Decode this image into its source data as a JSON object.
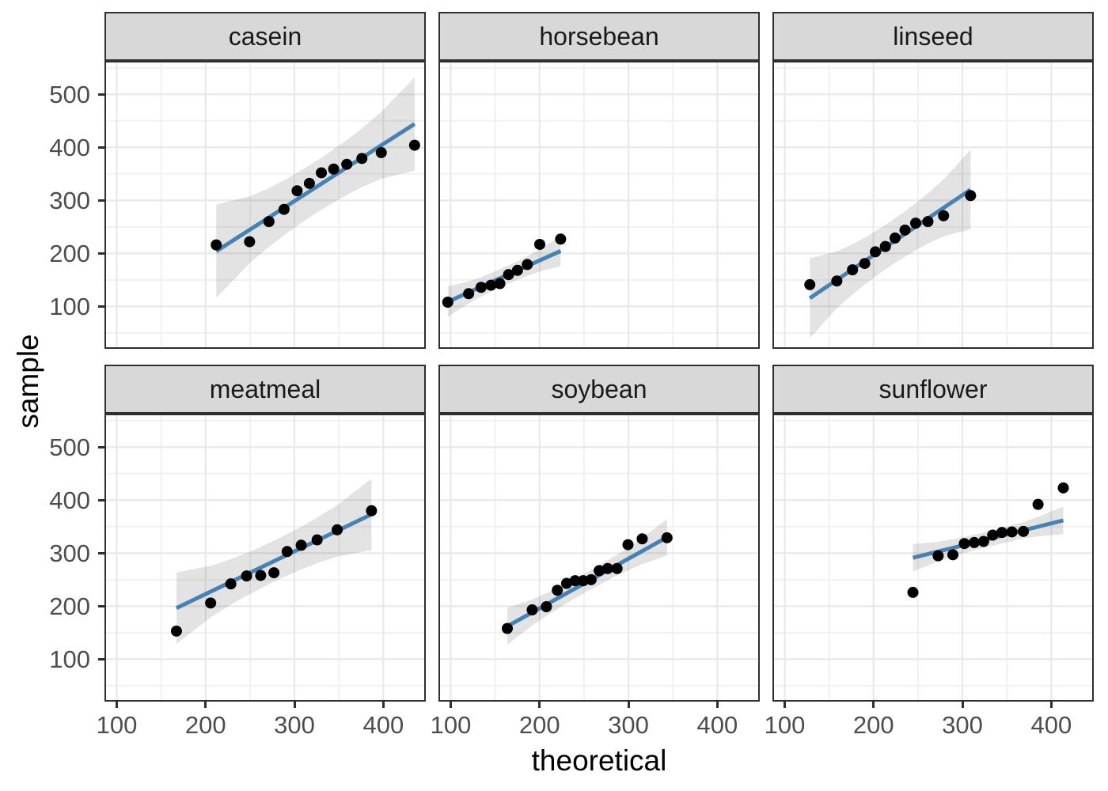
{
  "figure": {
    "kind": "faceted-qq-plot",
    "facet_titles": [
      "casein",
      "horsebean",
      "linseed",
      "meatmeal",
      "soybean",
      "sunflower"
    ]
  },
  "axes": {
    "x_title": "theoretical",
    "y_title": "sample",
    "x_ticks": [
      100,
      200,
      300,
      400
    ],
    "y_ticks": [
      100,
      200,
      300,
      400,
      500
    ],
    "x_minor": [
      150,
      250,
      350
    ],
    "y_minor": [
      50,
      150,
      250,
      350,
      450,
      550
    ],
    "x_domain": [
      88,
      446
    ],
    "y_domain": [
      23,
      560
    ]
  },
  "colors": {
    "qq_line": "#4682B4",
    "band_fill": "rgba(60,60,60,0.14)",
    "point": "#000000",
    "strip_bg": "#D8D8D8",
    "panel_border": "#2F2F2F",
    "grid_major": "#E9E9E9",
    "grid_minor": "#F1F1F1",
    "axis_text": "#4D4D4D",
    "title_text": "#000000"
  },
  "chart_data": [
    {
      "type": "scatter",
      "name": "casein",
      "x": [
        212.0,
        249.5,
        271.3,
        288.3,
        303.0,
        316.8,
        330.3,
        344.1,
        358.9,
        375.9,
        397.7,
        435.2
      ],
      "y": [
        216,
        222,
        260,
        283,
        318,
        332,
        352,
        359,
        368,
        379,
        390,
        404
      ],
      "line": {
        "x1": 212.0,
        "y1": 204.0,
        "x2": 435.2,
        "y2": 444.1
      },
      "band_lo": [
        115.9,
        181.3,
        212.2,
        234.1,
        251.8,
        267.6,
        282.1,
        296.0,
        310.1,
        324.8,
        340.7,
        356.0
      ],
      "band_hi": [
        292.1,
        307.3,
        323.2,
        337.9,
        352.0,
        366.0,
        380.5,
        396.2,
        413.9,
        435.8,
        466.7,
        532.2
      ]
    },
    {
      "type": "scatter",
      "name": "horsebean",
      "x": [
        96.7,
        120.2,
        134.2,
        145.3,
        155.3,
        165.1,
        175.1,
        186.2,
        200.2,
        223.7
      ],
      "y": [
        108,
        124,
        136,
        140,
        143,
        160,
        168,
        179,
        217,
        227
      ],
      "line": {
        "x1": 96.7,
        "y1": 108.8,
        "x2": 223.7,
        "y2": 204.5
      },
      "band_lo": [
        80.2,
        105.8,
        118.5,
        128.0,
        136.0,
        143.3,
        150.4,
        157.7,
        166.1,
        175.9
      ],
      "band_hi": [
        137.4,
        147.2,
        155.5,
        162.8,
        170.0,
        177.3,
        185.2,
        194.7,
        207.5,
        233.1
      ]
    },
    {
      "type": "scatter",
      "name": "linseed",
      "x": [
        128.3,
        158.7,
        176.3,
        190.1,
        202.1,
        213.3,
        224.2,
        235.4,
        247.4,
        261.2,
        278.8,
        309.2
      ],
      "y": [
        141,
        148,
        169,
        181,
        203,
        213,
        229,
        244,
        257,
        260,
        271,
        309
      ],
      "line": {
        "x1": 128.3,
        "y1": 115.5,
        "x2": 309.2,
        "y2": 320.3
      },
      "band_lo": [
        40.4,
        96.2,
        122.5,
        141.2,
        156.3,
        169.7,
        182.1,
        194.0,
        206.0,
        218.5,
        232.2,
        245.2
      ],
      "band_hi": [
        190.6,
        203.6,
        217.3,
        229.8,
        241.7,
        253.7,
        266.1,
        279.4,
        294.6,
        313.3,
        339.6,
        395.4
      ]
    },
    {
      "type": "scatter",
      "name": "meatmeal",
      "x": [
        167.2,
        205.7,
        228.4,
        246.2,
        262.0,
        276.9,
        291.8,
        307.6,
        325.5,
        348.1,
        386.7
      ],
      "y": [
        153,
        206,
        242,
        257,
        258,
        263,
        303,
        315,
        325,
        344,
        380
      ],
      "line": {
        "x1": 167.2,
        "y1": 196.4,
        "x2": 386.7,
        "y2": 373.2
      },
      "band_lo": [
        129.0,
        178.9,
        202.7,
        219.7,
        233.6,
        246.1,
        257.7,
        269.2,
        280.8,
        293.6,
        305.7
      ],
      "band_hi": [
        263.8,
        275.9,
        288.7,
        300.3,
        311.8,
        323.5,
        335.9,
        349.8,
        366.8,
        390.6,
        440.5
      ]
    },
    {
      "type": "scatter",
      "name": "soybean",
      "x": [
        163.7,
        191.7,
        207.7,
        220.0,
        230.4,
        240.0,
        249.1,
        258.0,
        267.1,
        276.7,
        287.2,
        299.5,
        315.5,
        343.4
      ],
      "y": [
        158,
        193,
        199,
        230,
        243,
        248,
        248,
        250,
        267,
        271,
        271,
        316,
        327,
        329
      ],
      "line": {
        "x1": 163.7,
        "y1": 162.0,
        "x2": 343.4,
        "y2": 330.0
      },
      "band_lo": [
        127.4,
        163.6,
        181.6,
        194.6,
        205.3,
        214.7,
        223.4,
        231.8,
        240.1,
        248.6,
        258.4,
        267.5,
        279.4,
        295.4
      ],
      "band_hi": [
        196.6,
        212.8,
        224.6,
        234.6,
        243.5,
        251.9,
        260.2,
        268.6,
        277.3,
        286.8,
        296.6,
        310.5,
        328.6,
        364.6
      ]
    },
    {
      "type": "scatter",
      "name": "sunflower",
      "x": [
        244.3,
        272.7,
        289.3,
        302.2,
        313.3,
        323.8,
        334.0,
        344.5,
        355.7,
        368.6,
        385.1,
        413.5
      ],
      "y": [
        226,
        295,
        297,
        318,
        320,
        322,
        334,
        339,
        340,
        341,
        392,
        423
      ],
      "line": {
        "x1": 244.3,
        "y1": 291.2,
        "x2": 413.5,
        "y2": 361.8
      },
      "band_lo": [
        265.3,
        284.6,
        293.6,
        300.0,
        305.3,
        309.9,
        314.1,
        318.3,
        322.4,
        327.8,
        331.5,
        335.9
      ],
      "band_hi": [
        317.1,
        321.6,
        326.2,
        330.6,
        334.7,
        338.9,
        343.1,
        347.7,
        353.0,
        358.4,
        368.5,
        387.7
      ]
    }
  ]
}
